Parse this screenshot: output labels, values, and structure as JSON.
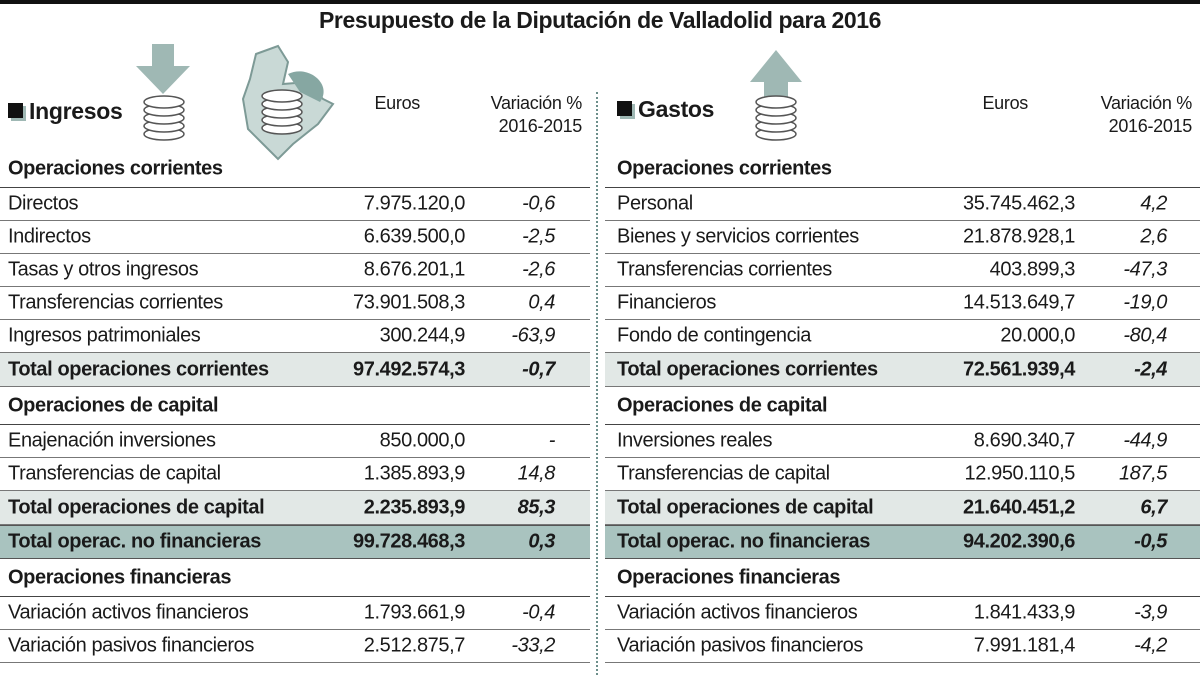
{
  "title": "Presupuesto de la Diputación de Valladolid para 2016",
  "panels": [
    {
      "heading": "Ingresos",
      "col_euros": "Euros",
      "col_var": [
        "Variación %",
        "2016-2015"
      ],
      "blocks": [
        {
          "section": "Operaciones corrientes"
        },
        {
          "row": [
            "Directos",
            "7.975.120,0",
            "-0,6"
          ]
        },
        {
          "row": [
            "Indirectos",
            "6.639.500,0",
            "-2,5"
          ]
        },
        {
          "row": [
            "Tasas y otros ingresos",
            "8.676.201,1",
            "-2,6"
          ]
        },
        {
          "row": [
            "Transferencias corrientes",
            "73.901.508,3",
            "0,4"
          ]
        },
        {
          "row": [
            "Ingresos patrimoniales",
            "300.244,9",
            "-63,9"
          ]
        },
        {
          "total": [
            "Total operaciones corrientes",
            "97.492.574,3",
            "-0,7"
          ]
        },
        {
          "section": "Operaciones de capital"
        },
        {
          "row": [
            "Enajenación inversiones",
            "850.000,0",
            "-"
          ]
        },
        {
          "row": [
            "Transferencias de capital",
            "1.385.893,9",
            "14,8"
          ]
        },
        {
          "total": [
            "Total operaciones de capital",
            "2.235.893,9",
            "85,3"
          ]
        },
        {
          "grand_total": [
            "Total operac. no financieras",
            "99.728.468,3",
            "0,3"
          ]
        },
        {
          "section": "Operaciones financieras"
        },
        {
          "row": [
            "Variación activos financieros",
            "1.793.661,9",
            "-0,4"
          ]
        },
        {
          "row": [
            "Variación pasivos financieros",
            "2.512.875,7",
            "-33,2"
          ]
        }
      ]
    },
    {
      "heading": "Gastos",
      "col_euros": "Euros",
      "col_var": [
        "Variación %",
        "2016-2015"
      ],
      "blocks": [
        {
          "section": "Operaciones corrientes"
        },
        {
          "row": [
            "Personal",
            "35.745.462,3",
            "4,2"
          ]
        },
        {
          "row": [
            "Bienes y servicios corrientes",
            "21.878.928,1",
            "2,6"
          ]
        },
        {
          "row": [
            "Transferencias corrientes",
            "403.899,3",
            "-47,3"
          ]
        },
        {
          "row": [
            "Financieros",
            "14.513.649,7",
            "-19,0"
          ]
        },
        {
          "row": [
            "Fondo de contingencia",
            "20.000,0",
            "-80,4"
          ]
        },
        {
          "total": [
            "Total operaciones corrientes",
            "72.561.939,4",
            "-2,4"
          ]
        },
        {
          "section": "Operaciones de capital"
        },
        {
          "row": [
            "Inversiones reales",
            "8.690.340,7",
            "-44,9"
          ]
        },
        {
          "row": [
            "Transferencias de capital",
            "12.950.110,5",
            "187,5"
          ]
        },
        {
          "total": [
            "Total operaciones de capital",
            "21.640.451,2",
            "6,7"
          ]
        },
        {
          "grand_total": [
            "Total operac. no financieras",
            "94.202.390,6",
            "-0,5"
          ]
        },
        {
          "section": "Operaciones financieras"
        },
        {
          "row": [
            "Variación activos financieros",
            "1.841.433,9",
            "-3,9"
          ]
        },
        {
          "row": [
            "Variación pasivos financieros",
            "7.991.181,4",
            "-4,2"
          ]
        }
      ]
    }
  ]
}
